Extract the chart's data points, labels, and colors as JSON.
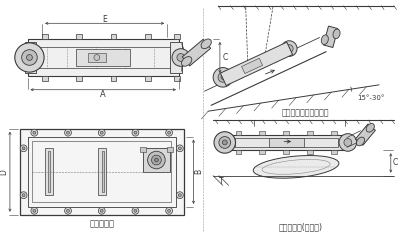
{
  "bg_color": "#ffffff",
  "line_color": "#555555",
  "dark_line": "#3a3a3a",
  "title1": "外形尺寸图",
  "title2": "安装示意图（倾斜式）",
  "title3": "安装示意图(水平式)",
  "label_A": "A",
  "label_B": "B",
  "label_C": "C",
  "label_D": "D",
  "label_angle": "15°-30°",
  "fig_width": 4.0,
  "fig_height": 2.39,
  "dpi": 100
}
